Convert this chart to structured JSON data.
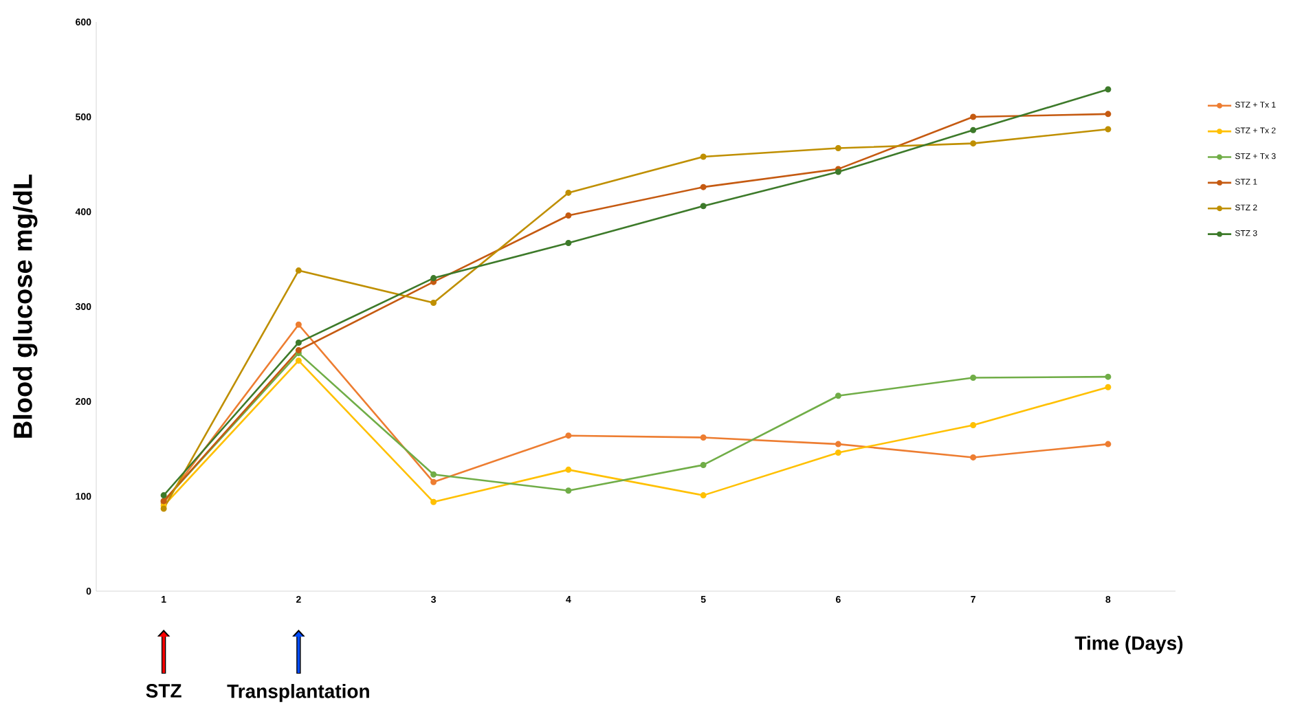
{
  "chart_data": {
    "type": "line",
    "xlabel": "Time (Days)",
    "ylabel": "Blood glucose mg/dL",
    "x": [
      1,
      2,
      3,
      4,
      5,
      6,
      7,
      8
    ],
    "xlim": [
      0.5,
      8.5
    ],
    "xticks": [
      1,
      2,
      3,
      4,
      5,
      6,
      7,
      8
    ],
    "ylim": [
      0,
      600
    ],
    "yticks": [
      0,
      100,
      200,
      300,
      400,
      500,
      600
    ],
    "series": [
      {
        "name": "STZ + Tx 1",
        "color": "#ed7d31",
        "values": [
          93,
          281,
          115,
          164,
          162,
          155,
          141,
          155
        ]
      },
      {
        "name": "STZ + Tx 2",
        "color": "#ffc000",
        "values": [
          90,
          243,
          94,
          128,
          101,
          146,
          175,
          215
        ]
      },
      {
        "name": "STZ + Tx 3",
        "color": "#70ad47",
        "values": [
          95,
          251,
          123,
          106,
          133,
          206,
          225,
          226
        ]
      },
      {
        "name": "STZ 1",
        "color": "#c55a11",
        "values": [
          95,
          254,
          326,
          396,
          426,
          445,
          500,
          503
        ]
      },
      {
        "name": "STZ 2",
        "color": "#bf8f00",
        "values": [
          87,
          338,
          304,
          420,
          458,
          467,
          472,
          487
        ]
      },
      {
        "name": "STZ 3",
        "color": "#3d7a2a",
        "values": [
          101,
          262,
          330,
          367,
          406,
          442,
          486,
          529
        ]
      }
    ],
    "annotations": [
      {
        "text": "STZ",
        "x": 1
      },
      {
        "text": "Transplantation",
        "x": 2
      }
    ],
    "legend": "right",
    "marker": "circle",
    "line_style": "solid",
    "grid": false
  }
}
